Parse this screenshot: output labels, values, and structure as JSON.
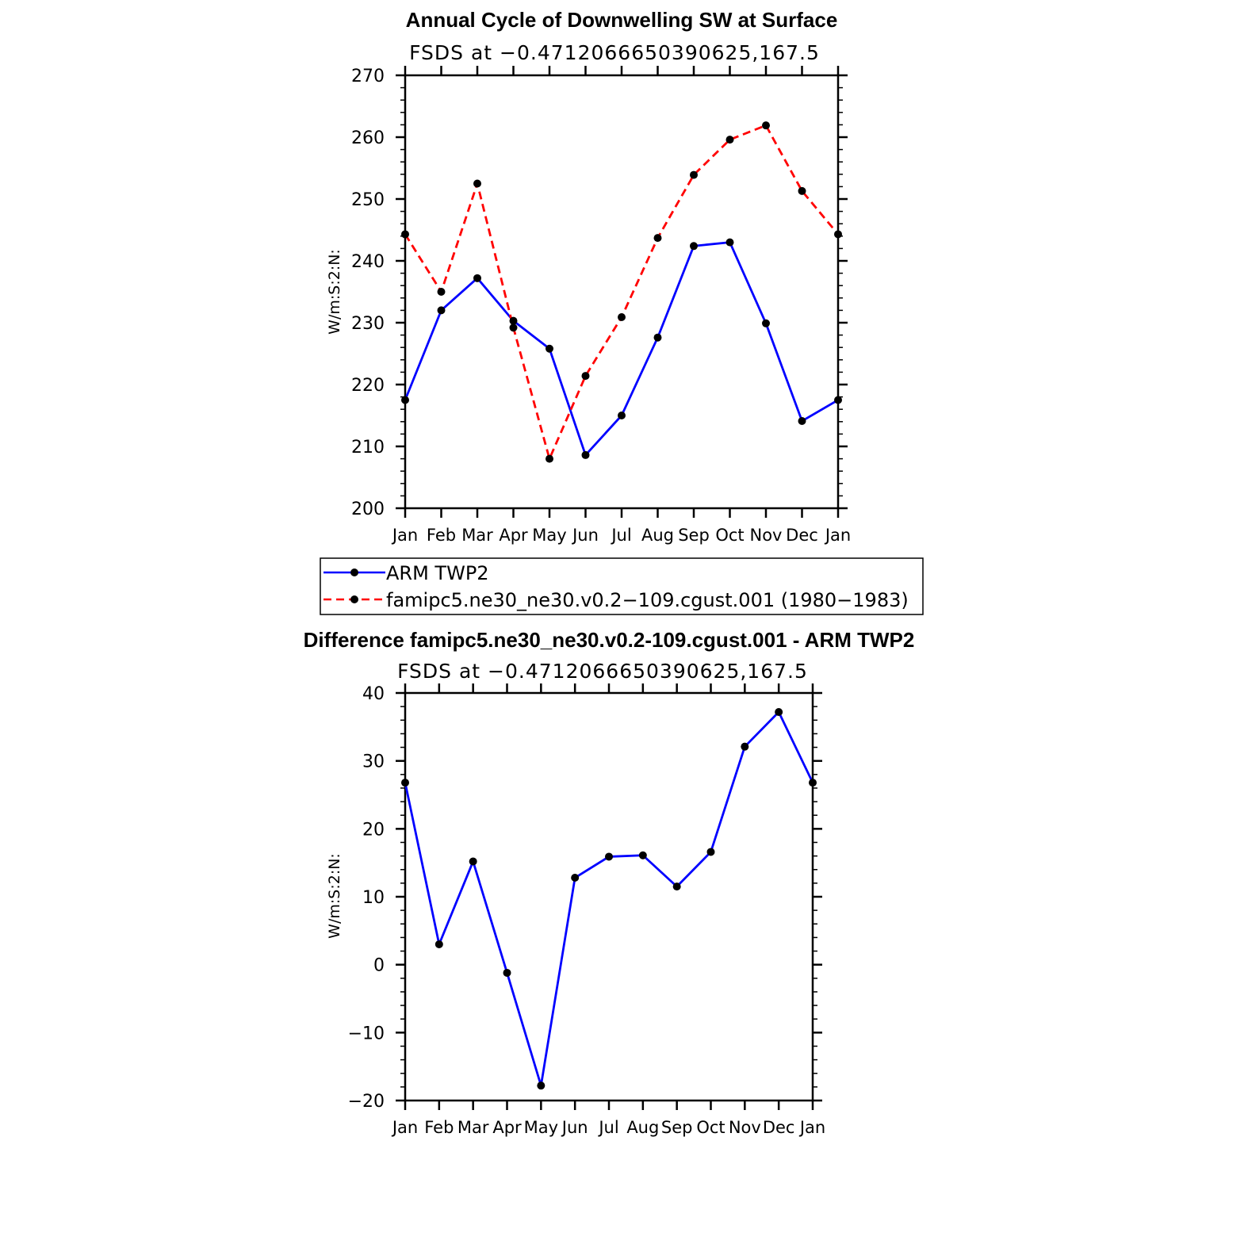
{
  "chart_data": [
    {
      "type": "line",
      "title": "Annual Cycle of Downwelling SW at Surface",
      "subtitle": "FSDS at −0.4712066650390625,167.5",
      "ylabel": "W/m:S:2:N:",
      "ylim": [
        200,
        270
      ],
      "yticks": [
        "200",
        "210",
        "220",
        "230",
        "240",
        "250",
        "260",
        "270"
      ],
      "categories": [
        "Jan",
        "Feb",
        "Mar",
        "Apr",
        "May",
        "Jun",
        "Jul",
        "Aug",
        "Sep",
        "Oct",
        "Nov",
        "Dec",
        "Jan"
      ],
      "series": [
        {
          "name": "ARM TWP2",
          "color": "#0000ff",
          "dash": "solid",
          "values": [
            217.5,
            232.0,
            237.2,
            230.3,
            225.8,
            208.6,
            215.0,
            227.6,
            242.4,
            243.0,
            229.9,
            214.1,
            217.5
          ]
        },
        {
          "name": "famipc5.ne30_ne30.v0.2−109.cgust.001 (1980−1983)",
          "color": "#ff0000",
          "dash": "dashed",
          "values": [
            244.3,
            235.0,
            252.5,
            229.2,
            208.0,
            221.4,
            230.9,
            243.7,
            253.9,
            259.6,
            261.9,
            251.3,
            244.3
          ]
        }
      ],
      "legend": "below"
    },
    {
      "type": "line",
      "title": "Difference famipc5.ne30_ne30.v0.2-109.cgust.001 - ARM TWP2",
      "subtitle": "FSDS at −0.4712066650390625,167.5",
      "ylabel": "W/m:S:2:N:",
      "ylim": [
        -20,
        40
      ],
      "yticks": [
        "−20",
        "−10",
        "0",
        "10",
        "20",
        "30",
        "40"
      ],
      "categories": [
        "Jan",
        "Feb",
        "Mar",
        "Apr",
        "May",
        "Jun",
        "Jul",
        "Aug",
        "Sep",
        "Oct",
        "Nov",
        "Dec",
        "Jan"
      ],
      "series": [
        {
          "color": "#0000ff",
          "dash": "solid",
          "values": [
            26.8,
            3.0,
            15.2,
            -1.2,
            -17.8,
            12.8,
            15.9,
            16.1,
            11.5,
            16.6,
            32.1,
            37.2,
            26.8
          ]
        }
      ]
    }
  ]
}
